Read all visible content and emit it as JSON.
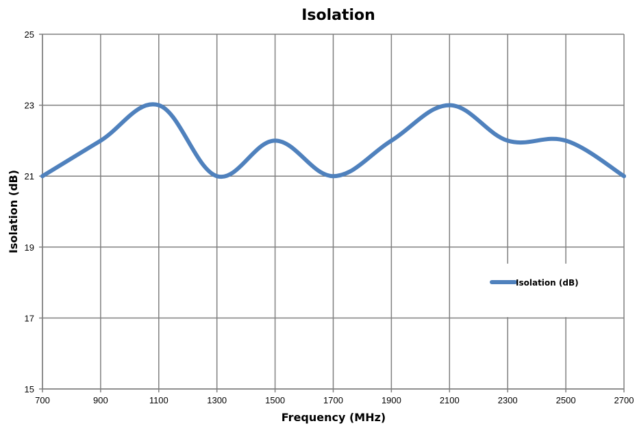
{
  "chart_data": {
    "type": "line",
    "title": "Isolation",
    "xlabel": "Frequency (MHz)",
    "ylabel": "Isolation (dB)",
    "xlim": [
      700,
      2700
    ],
    "ylim": [
      15,
      25
    ],
    "x_ticks": [
      700,
      900,
      1100,
      1300,
      1500,
      1700,
      1900,
      2100,
      2300,
      2500,
      2700
    ],
    "y_ticks": [
      15,
      17,
      19,
      21,
      23,
      25
    ],
    "grid": true,
    "legend_position": "right",
    "x": [
      700,
      900,
      1100,
      1300,
      1500,
      1700,
      1900,
      2100,
      2300,
      2500,
      2700
    ],
    "series": [
      {
        "name": "Isolation (dB)",
        "color": "#4f81bd",
        "values": [
          21,
          22,
          23,
          21,
          22,
          21,
          22,
          23,
          22,
          22,
          21
        ]
      }
    ]
  }
}
